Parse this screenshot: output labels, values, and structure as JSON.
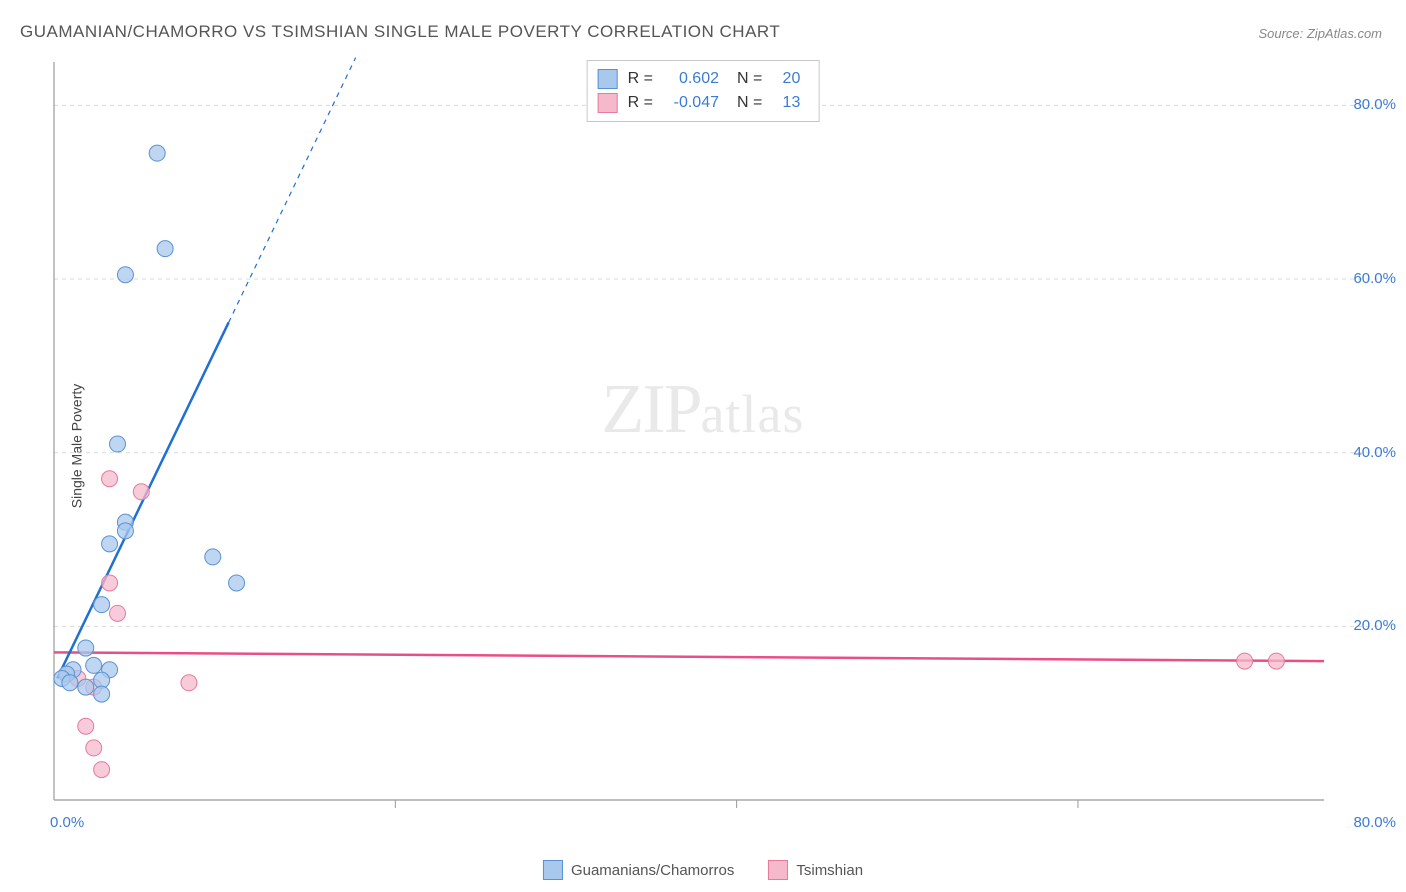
{
  "title": "GUAMANIAN/CHAMORRO VS TSIMSHIAN SINGLE MALE POVERTY CORRELATION CHART",
  "source": "Source: ZipAtlas.com",
  "y_axis_label": "Single Male Poverty",
  "watermark": {
    "part1": "ZIP",
    "part2": "atlas"
  },
  "colors": {
    "blue_fill": "#a8c8ed",
    "blue_stroke": "#5a92d0",
    "pink_fill": "#f5b9cb",
    "pink_stroke": "#e67a9d",
    "blue_line": "#1f6fd4",
    "pink_line": "#e84f86",
    "grid": "#d8d8d8",
    "axis": "#999999",
    "tick_text": "#3b7bd6",
    "title_text": "#555555",
    "bg": "#ffffff"
  },
  "chart": {
    "type": "scatter",
    "xlim": [
      0,
      80
    ],
    "ylim": [
      0,
      85
    ],
    "x_ticks": [
      0,
      80
    ],
    "x_tick_labels": [
      "0.0%",
      "80.0%"
    ],
    "y_ticks": [
      20,
      40,
      60,
      80
    ],
    "y_tick_labels": [
      "20.0%",
      "40.0%",
      "60.0%",
      "80.0%"
    ],
    "x_minor_grid": [
      21.5,
      43,
      64.5
    ],
    "marker_radius": 8,
    "marker_opacity": 0.75,
    "line_width_solid": 2.5,
    "line_width_dash": 1.2
  },
  "series": [
    {
      "name": "Guamanians/Chamorros",
      "color_key": "blue",
      "R": "0.602",
      "N": "20",
      "points": [
        [
          6.5,
          74.5
        ],
        [
          7.0,
          63.5
        ],
        [
          4.5,
          60.5
        ],
        [
          4.0,
          41.0
        ],
        [
          4.5,
          32.0
        ],
        [
          4.5,
          31.0
        ],
        [
          3.5,
          29.5
        ],
        [
          10.0,
          28.0
        ],
        [
          11.5,
          25.0
        ],
        [
          3.0,
          22.5
        ],
        [
          2.0,
          17.5
        ],
        [
          2.5,
          15.5
        ],
        [
          3.5,
          15.0
        ],
        [
          1.2,
          15.0
        ],
        [
          0.8,
          14.5
        ],
        [
          0.5,
          14.0
        ],
        [
          1.0,
          13.5
        ],
        [
          2.0,
          13.0
        ],
        [
          3.0,
          13.8
        ],
        [
          3.0,
          12.2
        ]
      ],
      "trend": {
        "x1": 0.2,
        "y1": 14.0,
        "x2": 11.0,
        "y2": 55.0,
        "dash_x2": 19.0,
        "dash_y2": 85.5
      }
    },
    {
      "name": "Tsimshian",
      "color_key": "pink",
      "R": "-0.047",
      "N": "13",
      "points": [
        [
          3.5,
          37.0
        ],
        [
          5.5,
          35.5
        ],
        [
          3.5,
          25.0
        ],
        [
          4.0,
          21.5
        ],
        [
          8.5,
          13.5
        ],
        [
          75.0,
          16.0
        ],
        [
          77.0,
          16.0
        ],
        [
          0.8,
          14.5
        ],
        [
          1.5,
          14.0
        ],
        [
          2.5,
          13.0
        ],
        [
          2.0,
          8.5
        ],
        [
          2.5,
          6.0
        ],
        [
          3.0,
          3.5
        ]
      ],
      "trend": {
        "x1": 0,
        "y1": 17.0,
        "x2": 80,
        "y2": 16.0
      }
    }
  ],
  "legend_corr": {
    "r_label": "R =",
    "n_label": "N ="
  },
  "bottom_legend": {
    "item1": "Guamanians/Chamorros",
    "item2": "Tsimshian"
  }
}
